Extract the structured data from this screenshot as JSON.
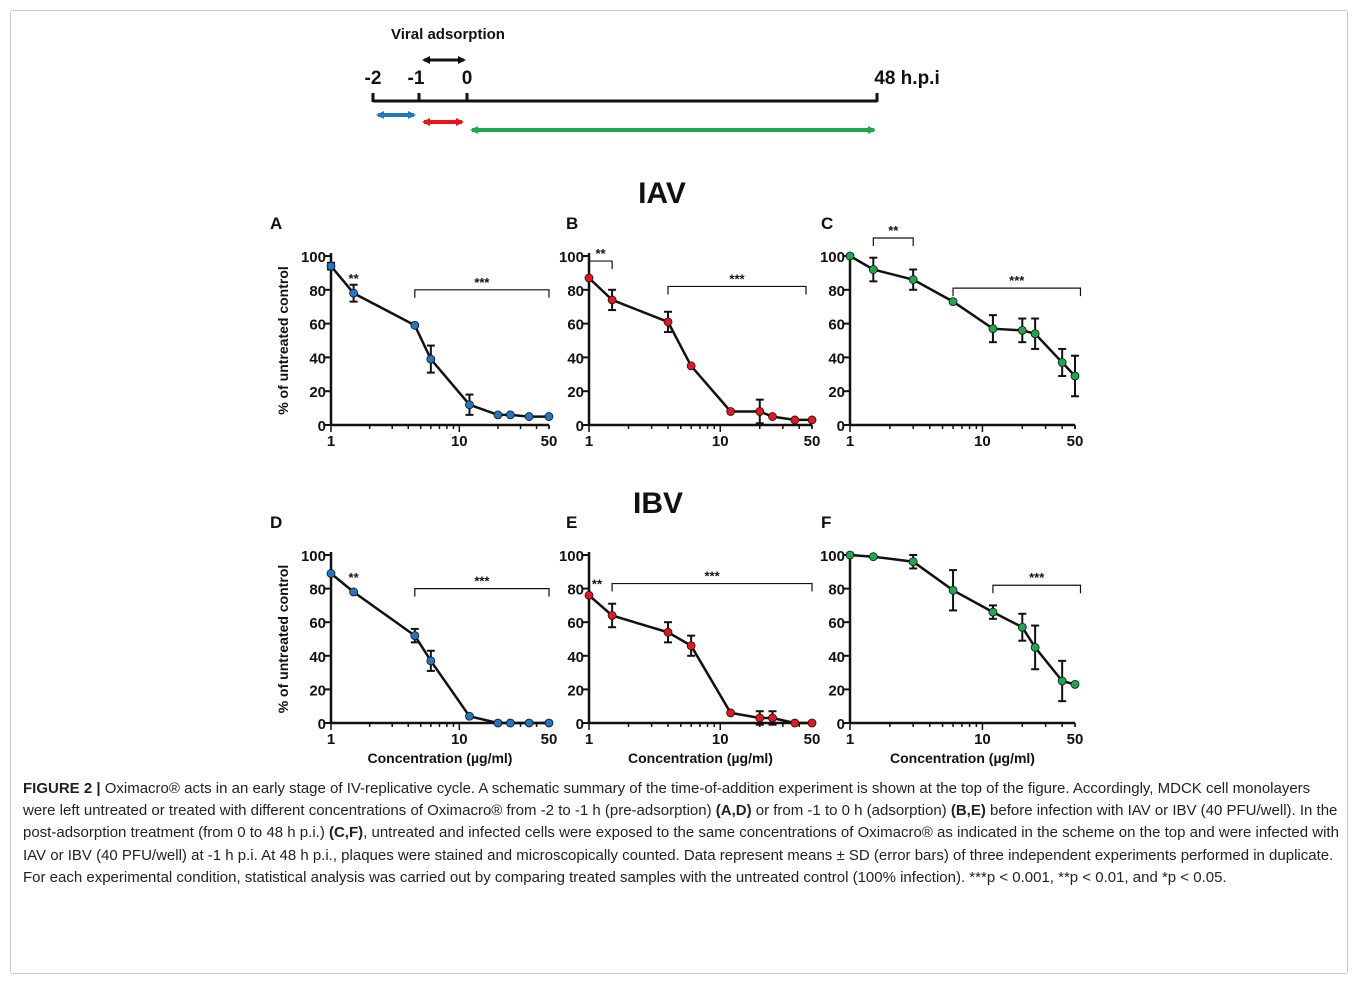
{
  "schematic": {
    "title": "Viral adsorption",
    "ticks": [
      "-2",
      "-1",
      "0",
      "48 h.p.i"
    ],
    "colors": {
      "pre": "#1f77c8",
      "adsorption": "#e8161c",
      "post": "#1aaa4a",
      "black": "#111111"
    }
  },
  "headings": {
    "iav": "IAV",
    "ibv": "IBV"
  },
  "y_label": "% of untreated control",
  "x_label": "Concentration (µg/ml)",
  "chart_data": [
    {
      "panel": "A",
      "type": "line",
      "color": "#1f77c8",
      "xscale": "log",
      "xlim": [
        1,
        50
      ],
      "ylim": [
        0,
        100
      ],
      "xticks": [
        "1",
        "10",
        "50"
      ],
      "yticks": [
        "0",
        "20",
        "40",
        "60",
        "80",
        "100"
      ],
      "ylabel": "% of untreated control",
      "xlabel": "",
      "x": [
        1,
        1.5,
        4.5,
        6,
        12,
        20,
        25,
        35,
        50
      ],
      "y": [
        94,
        78,
        59,
        39,
        12,
        6,
        6,
        5,
        5
      ],
      "err": [
        2,
        5,
        1,
        8,
        6,
        1,
        1,
        1,
        1
      ],
      "annotations": [
        {
          "text": "**",
          "x": 1.5
        },
        {
          "text": "***",
          "from": 4.5,
          "to": 50
        }
      ]
    },
    {
      "panel": "B",
      "type": "line",
      "color": "#e8161c",
      "xscale": "log",
      "xlim": [
        1,
        50
      ],
      "ylim": [
        0,
        100
      ],
      "xticks": [
        "1",
        "10",
        "50"
      ],
      "yticks": [
        "0",
        "20",
        "40",
        "60",
        "80",
        "100"
      ],
      "ylabel": "",
      "xlabel": "",
      "x": [
        1,
        1.5,
        4,
        6,
        12,
        20,
        25,
        37,
        50
      ],
      "y": [
        87,
        74,
        61,
        35,
        8,
        8,
        5,
        3,
        3
      ],
      "err": [
        1,
        6,
        6,
        1,
        1,
        7,
        1,
        1,
        1
      ],
      "annotations": [
        {
          "text": "**",
          "from": 1,
          "to": 1.5
        },
        {
          "text": "***",
          "from": 4,
          "to": 45
        }
      ]
    },
    {
      "panel": "C",
      "type": "line",
      "color": "#1aaa4a",
      "xscale": "log",
      "xlim": [
        1,
        50
      ],
      "ylim": [
        0,
        100
      ],
      "xticks": [
        "1",
        "10",
        "50"
      ],
      "yticks": [
        "0",
        "20",
        "40",
        "60",
        "80",
        "100"
      ],
      "ylabel": "",
      "xlabel": "",
      "x": [
        1,
        1.5,
        3,
        6,
        12,
        20,
        25,
        40,
        50
      ],
      "y": [
        100,
        92,
        86,
        73,
        57,
        56,
        54,
        37,
        29
      ],
      "err": [
        1,
        7,
        6,
        1,
        8,
        7,
        9,
        8,
        12
      ],
      "annotations": [
        {
          "text": "**",
          "from": 1.5,
          "to": 3
        },
        {
          "text": "***",
          "from": 6,
          "to": 55
        }
      ]
    },
    {
      "panel": "D",
      "type": "line",
      "color": "#1f77c8",
      "xscale": "log",
      "xlim": [
        1,
        50
      ],
      "ylim": [
        0,
        100
      ],
      "xticks": [
        "1",
        "10",
        "50"
      ],
      "yticks": [
        "0",
        "20",
        "40",
        "60",
        "80",
        "100"
      ],
      "ylabel": "% of untreated control",
      "xlabel": "Concentration (µg/ml)",
      "x": [
        1,
        1.5,
        4.5,
        6,
        12,
        20,
        25,
        35,
        50
      ],
      "y": [
        89,
        78,
        52,
        37,
        4,
        0,
        0,
        0,
        0
      ],
      "err": [
        1,
        1,
        4,
        6,
        1,
        1,
        1,
        1,
        1
      ],
      "annotations": [
        {
          "text": "**",
          "x": 1.5
        },
        {
          "text": "***",
          "from": 4.5,
          "to": 50
        }
      ]
    },
    {
      "panel": "E",
      "type": "line",
      "color": "#e8161c",
      "xscale": "log",
      "xlim": [
        1,
        50
      ],
      "ylim": [
        0,
        100
      ],
      "xticks": [
        "1",
        "10",
        "50"
      ],
      "yticks": [
        "0",
        "20",
        "40",
        "60",
        "80",
        "100"
      ],
      "ylabel": "",
      "xlabel": "Concentration (µg/ml)",
      "x": [
        1,
        1.5,
        4,
        6,
        12,
        20,
        25,
        37,
        50
      ],
      "y": [
        76,
        64,
        54,
        46,
        6,
        3,
        3,
        0,
        0
      ],
      "err": [
        1,
        7,
        6,
        6,
        1,
        4,
        4,
        1,
        1
      ],
      "annotations": [
        {
          "text": "**",
          "x": 1.15
        },
        {
          "text": "***",
          "from": 1.5,
          "to": 50
        }
      ]
    },
    {
      "panel": "F",
      "type": "line",
      "color": "#1aaa4a",
      "xscale": "log",
      "xlim": [
        1,
        50
      ],
      "ylim": [
        0,
        100
      ],
      "xticks": [
        "1",
        "10",
        "50"
      ],
      "yticks": [
        "0",
        "20",
        "40",
        "60",
        "80",
        "100"
      ],
      "ylabel": "",
      "xlabel": "Concentration (µg/ml)",
      "x": [
        1,
        1.5,
        3,
        6,
        12,
        20,
        25,
        40,
        50
      ],
      "y": [
        100,
        99,
        96,
        79,
        66,
        57,
        45,
        25,
        23
      ],
      "err": [
        1,
        1,
        4,
        12,
        4,
        8,
        13,
        12,
        1
      ],
      "annotations": [
        {
          "text": "***",
          "from": 12,
          "to": 55
        }
      ]
    }
  ],
  "caption": {
    "label": "FIGURE 2 |",
    "segments": [
      {
        "text": " Oximacro® acts in an early stage of IV-replicative cycle. A schematic summary of the time-of-addition experiment is shown at the top of the figure. Accordingly, MDCK cell monolayers were left untreated or treated with different concentrations of Oximacro® from -2 to -1 h (pre-adsorption) ",
        "bold": false
      },
      {
        "text": "(A,D)",
        "bold": true
      },
      {
        "text": " or from -1 to 0 h (adsorption) ",
        "bold": false
      },
      {
        "text": "(B,E)",
        "bold": true
      },
      {
        "text": " before infection with IAV or IBV (40 PFU/well). In the post-adsorption treatment (from 0 to 48 h p.i.) ",
        "bold": false
      },
      {
        "text": "(C,F)",
        "bold": true
      },
      {
        "text": ", untreated and infected cells were exposed to the same concentrations of Oximacro® as indicated in the scheme on the top and were infected with IAV or IBV (40 PFU/well) at -1 h p.i. At 48 h p.i., plaques were stained and microscopically counted. Data represent means ± SD (error bars) of three independent experiments performed in duplicate. For each experimental condition, statistical analysis was carried out by comparing treated samples with the untreated control (100% infection). ***p < 0.001, **p < 0.01, and *p < 0.05.",
        "bold": false
      }
    ]
  }
}
